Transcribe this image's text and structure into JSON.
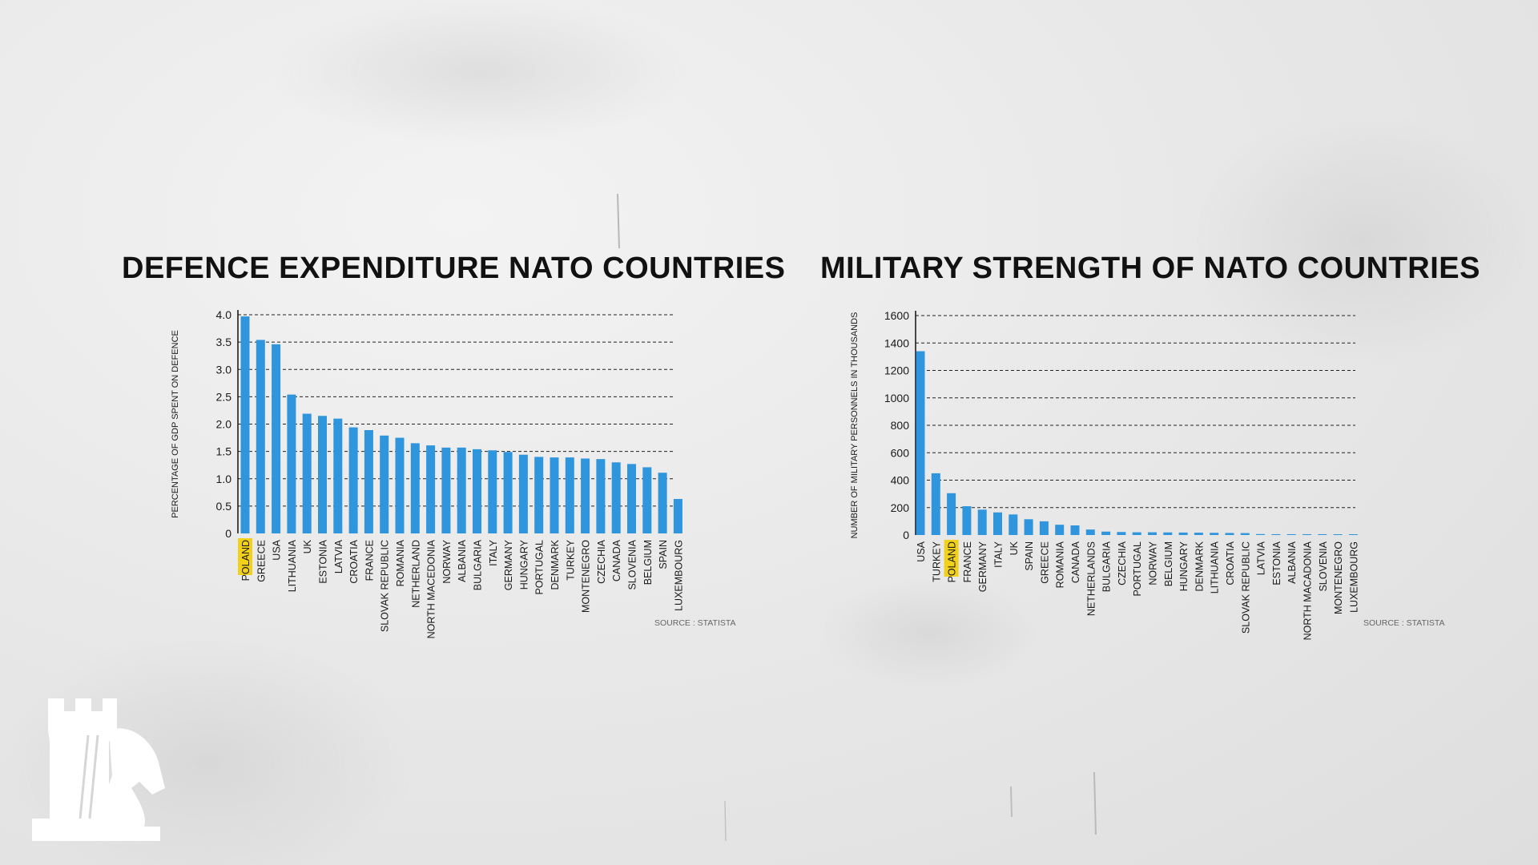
{
  "chart_data": [
    {
      "type": "bar",
      "title": "DEFENCE EXPENDITURE NATO COUNTRIES",
      "ylabel": "PERCENTAGE OF GDP SPENT ON DEFENCE",
      "xlabel": "",
      "ylim": [
        0,
        4.0
      ],
      "yticks": [
        "0",
        "0.5",
        "1.0",
        "1.5",
        "2.0",
        "2.5",
        "3.0",
        "3.5",
        "4.0"
      ],
      "grid": "horizontal-dashed",
      "highlight": "POLAND",
      "categories": [
        "POLAND",
        "GREECE",
        "USA",
        "LITHUANIA",
        "UK",
        "ESTONIA",
        "LATVIA",
        "CROATIA",
        "FRANCE",
        "SLOVAK REPUBLIC",
        "ROMANIA",
        "NETHERLAND",
        "NORTH MACEDONIA",
        "NORWAY",
        "ALBANIA",
        "BULGARIA",
        "ITALY",
        "GERMANY",
        "HUNGARY",
        "PORTUGAL",
        "DENMARK",
        "TURKEY",
        "MONTENEGRO",
        "CZECHIA",
        "CANADA",
        "SLOVENIA",
        "BELGIUM",
        "SPAIN",
        "LUXEMBOURG"
      ],
      "values": [
        3.97,
        3.54,
        3.46,
        2.54,
        2.19,
        2.15,
        2.1,
        1.94,
        1.89,
        1.79,
        1.75,
        1.65,
        1.61,
        1.57,
        1.57,
        1.54,
        1.52,
        1.49,
        1.44,
        1.4,
        1.39,
        1.39,
        1.37,
        1.36,
        1.3,
        1.27,
        1.21,
        1.11,
        0.63
      ],
      "source": "SOURCE : STATISTA"
    },
    {
      "type": "bar",
      "title": "MILITARY STRENGTH OF NATO COUNTRIES",
      "ylabel": "NUMBER OF MILITARY PERSONNELS IN THOUSANDS",
      "xlabel": "",
      "ylim": [
        0,
        1600
      ],
      "yticks": [
        "0",
        "200",
        "400",
        "600",
        "800",
        "1000",
        "1200",
        "1400",
        "1600"
      ],
      "grid": "horizontal-dashed",
      "highlight": "POLAND",
      "categories": [
        "USA",
        "TURKEY",
        "POLAND",
        "FRANCE",
        "GERMANY",
        "ITALY",
        "UK",
        "SPAIN",
        "GREECE",
        "ROMANIA",
        "CANADA",
        "NETHERLANDS",
        "BULGARIA",
        "CZECHIA",
        "PORTUGAL",
        "NORWAY",
        "BELGIUM",
        "HUNGARY",
        "DENMARK",
        "LITHUANIA",
        "CROATIA",
        "SLOVAK REPUBLIC",
        "LATVIA",
        "ESTONIA",
        "ALBANIA",
        "NORTH MACADONIA",
        "SLOVENIA",
        "MONTENEGRO",
        "LUXEMBOURG"
      ],
      "values": [
        1340,
        450,
        305,
        210,
        185,
        165,
        150,
        115,
        100,
        75,
        70,
        40,
        25,
        22,
        20,
        20,
        19,
        18,
        17,
        16,
        15,
        14,
        7,
        6,
        6,
        6,
        6,
        2,
        1
      ],
      "source": "SOURCE : STATISTA"
    }
  ],
  "colors": {
    "bar": "#2f95dd",
    "highlight": "#f2d11a",
    "text": "#1a1a1a",
    "grid": "#222222",
    "source": "#666666",
    "logo": "#ffffff"
  },
  "logo": {
    "icon": "chess-rook-knight-logo"
  }
}
